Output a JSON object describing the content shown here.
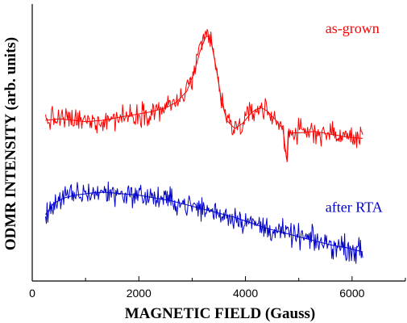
{
  "chart_data": {
    "type": "line",
    "title": "",
    "xlabel": "MAGNETIC  FIELD  (Gauss)",
    "ylabel": "ODMR INTENSITY (arb. units)",
    "xlim": [
      0,
      7000
    ],
    "ylim": [
      -2.5,
      7.5
    ],
    "x_ticks": [
      0,
      2000,
      4000,
      6000
    ],
    "x_tick_labels": [
      "0",
      "2000",
      "4000",
      "6000"
    ],
    "y_ticks_labeled": false,
    "grid": false,
    "legend": "inline labels at right of each curve",
    "series": [
      {
        "name": "as-grown",
        "color": "#ff0000",
        "label_anchor": [
          5500,
          6.45
        ],
        "x": [
          250,
          500,
          800,
          1000,
          1300,
          1600,
          1900,
          2200,
          2500,
          2700,
          2900,
          3050,
          3150,
          3250,
          3300,
          3350,
          3450,
          3550,
          3650,
          3800,
          3950,
          4100,
          4200,
          4300,
          4400,
          4550,
          4700,
          4780,
          4800,
          4850,
          5000,
          5300,
          5600,
          5900,
          6200
        ],
        "y": [
          3.3,
          3.35,
          3.3,
          3.25,
          3.3,
          3.4,
          3.5,
          3.6,
          3.75,
          3.95,
          4.35,
          5.1,
          5.8,
          6.3,
          6.35,
          6.2,
          5.2,
          4.0,
          3.3,
          3.0,
          3.2,
          3.55,
          3.7,
          3.75,
          3.65,
          3.35,
          3.0,
          1.8,
          2.9,
          2.85,
          2.85,
          2.9,
          2.8,
          2.7,
          2.65
        ]
      },
      {
        "name": "after RTA",
        "color": "#0000cc",
        "label_anchor": [
          5500,
          0.0
        ],
        "x": [
          250,
          400,
          600,
          800,
          1000,
          1200,
          1400,
          1700,
          2000,
          2300,
          2600,
          2900,
          3200,
          3500,
          3800,
          4100,
          4400,
          4700,
          5000,
          5300,
          5600,
          5900,
          6200
        ],
        "y": [
          -0.1,
          0.3,
          0.5,
          0.6,
          0.65,
          0.7,
          0.7,
          0.65,
          0.6,
          0.5,
          0.4,
          0.25,
          0.1,
          -0.05,
          -0.2,
          -0.4,
          -0.6,
          -0.75,
          -0.9,
          -1.05,
          -1.2,
          -1.3,
          -1.45
        ]
      }
    ]
  }
}
